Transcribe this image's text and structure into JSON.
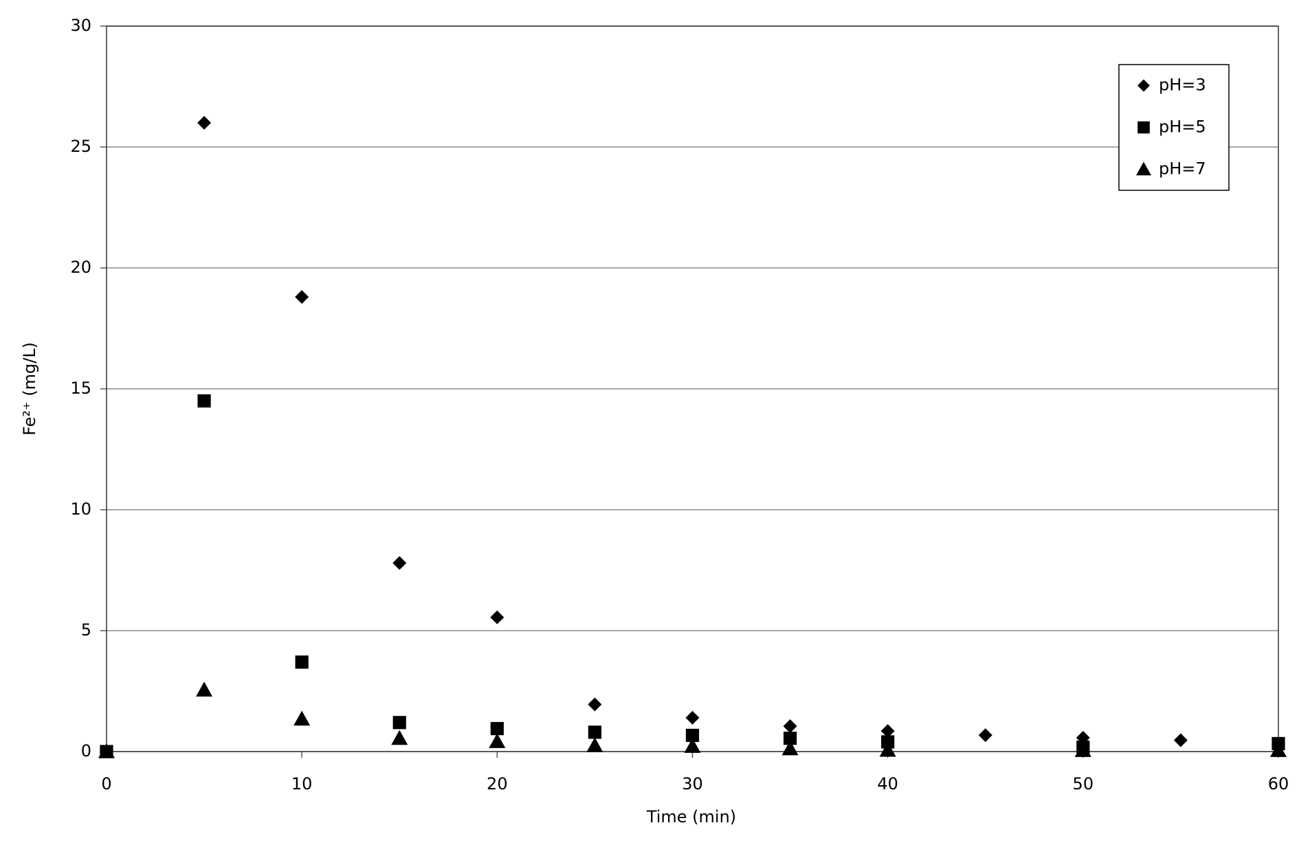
{
  "chart_data": {
    "type": "scatter",
    "x_label": "Time (min)",
    "y_label": "Fe²⁺ (mg/L)",
    "xlim": [
      0,
      60
    ],
    "xticks": [
      0,
      10,
      20,
      30,
      40,
      50,
      60
    ],
    "ylim": [
      0,
      30
    ],
    "yticks": [
      0,
      5,
      10,
      15,
      20,
      25,
      30
    ],
    "grid": true,
    "legend": "top-right",
    "series": [
      {
        "name": "pH=3",
        "color": "#000000",
        "marker": "diamond",
        "x": [
          0,
          5,
          10,
          15,
          20,
          25,
          30,
          35,
          40,
          45,
          50,
          55,
          60
        ],
        "values": [
          0,
          26.0,
          18.8,
          7.8,
          5.55,
          1.95,
          1.4,
          1.05,
          0.85,
          0.68,
          0.57,
          0.47,
          0.3
        ]
      },
      {
        "name": "pH=5",
        "color": "#000000",
        "marker": "square",
        "x": [
          0,
          5,
          10,
          15,
          20,
          25,
          30,
          35,
          40,
          50,
          60
        ],
        "values": [
          0,
          14.5,
          3.7,
          1.2,
          0.95,
          0.8,
          0.67,
          0.55,
          0.4,
          0.18,
          0.33
        ]
      },
      {
        "name": "pH=7",
        "color": "#000000",
        "marker": "triangle",
        "x": [
          0,
          5,
          10,
          15,
          20,
          25,
          30,
          35,
          40,
          50,
          60
        ],
        "values": [
          0,
          2.55,
          1.35,
          0.55,
          0.42,
          0.25,
          0.22,
          0.12,
          0.06,
          0.05,
          0.05
        ]
      }
    ]
  }
}
